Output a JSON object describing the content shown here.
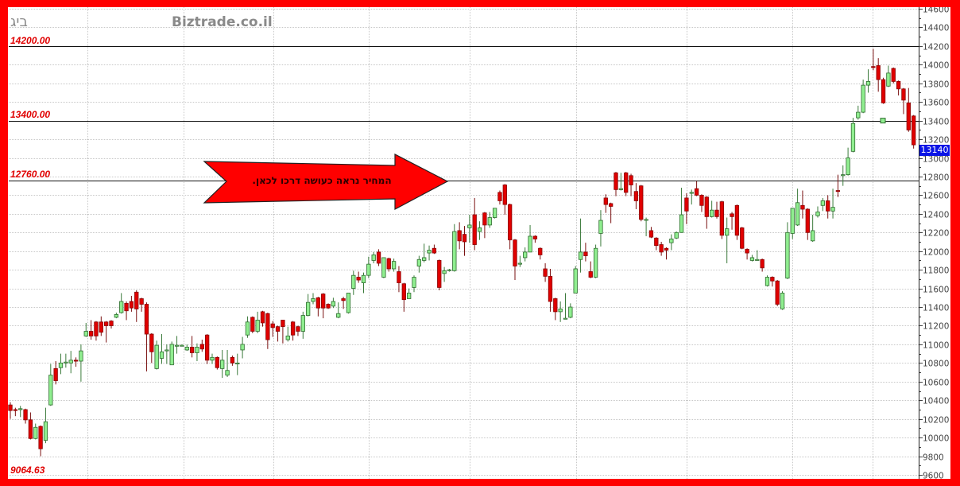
{
  "header": {
    "symbol_title": "ביג",
    "watermark": "Biztrade.co.il"
  },
  "annotations": {
    "levels": [
      {
        "value": 14200,
        "label": "14200.00"
      },
      {
        "value": 13400,
        "label": "13400.00"
      },
      {
        "value": 12760,
        "label": "12760.00"
      }
    ],
    "bottom_label": "9064.63",
    "arrow_text": "המחיר נראה  כעושה דרכו לכאן.",
    "last_price_badge": "13140",
    "colors": {
      "up": "#90ee90",
      "down": "#e00000",
      "level_label": "#e00000",
      "arrow": "#ff0000",
      "badge": "#0a14e6"
    }
  },
  "chart_data": {
    "type": "candlestick",
    "title": "",
    "xlabel": "",
    "ylabel": "",
    "ylim": [
      9600,
      14600
    ],
    "y_ticks": [
      9600,
      9800,
      10000,
      10200,
      10400,
      10600,
      10800,
      11000,
      11200,
      11400,
      11600,
      11800,
      12000,
      12200,
      12400,
      12600,
      12800,
      13000,
      13200,
      13400,
      13600,
      13800,
      14000,
      14200,
      14400,
      14600
    ],
    "y_axis_side": "right",
    "grid": true,
    "candle_fields": [
      "open",
      "high",
      "low",
      "close"
    ],
    "candles": [
      [
        10350,
        10380,
        10200,
        10290
      ],
      [
        10300,
        10320,
        10230,
        10290
      ],
      [
        10300,
        10340,
        10220,
        10310
      ],
      [
        10300,
        10310,
        10150,
        10190
      ],
      [
        10190,
        10270,
        9980,
        9990
      ],
      [
        9990,
        10150,
        9980,
        10110
      ],
      [
        10120,
        10130,
        9800,
        9880
      ],
      [
        9970,
        10320,
        9940,
        10170
      ],
      [
        10350,
        10790,
        10340,
        10670
      ],
      [
        10740,
        10820,
        10570,
        10610
      ],
      [
        10750,
        10900,
        10680,
        10800
      ],
      [
        10810,
        10900,
        10750,
        10810
      ],
      [
        10800,
        10930,
        10690,
        10830
      ],
      [
        10830,
        10860,
        10760,
        10820
      ],
      [
        10820,
        11000,
        10600,
        10930
      ],
      [
        11090,
        11230,
        11080,
        11140
      ],
      [
        11140,
        11260,
        11050,
        11090
      ],
      [
        11240,
        11250,
        11040,
        11090
      ],
      [
        11240,
        11300,
        11090,
        11130
      ],
      [
        11240,
        11250,
        11020,
        11200
      ],
      [
        11250,
        11260,
        11170,
        11200
      ],
      [
        11290,
        11340,
        11280,
        11320
      ],
      [
        11340,
        11550,
        11330,
        11460
      ],
      [
        11440,
        11460,
        11260,
        11360
      ],
      [
        11460,
        11520,
        11350,
        11390
      ],
      [
        11560,
        11580,
        11240,
        11380
      ],
      [
        11490,
        11500,
        11350,
        11430
      ],
      [
        11430,
        11450,
        10710,
        11110
      ],
      [
        11110,
        11120,
        10800,
        10920
      ],
      [
        10740,
        11040,
        10730,
        10990
      ],
      [
        10850,
        11110,
        10790,
        10920
      ],
      [
        10940,
        11000,
        10790,
        10940
      ],
      [
        10780,
        11030,
        10780,
        11000
      ],
      [
        10990,
        11090,
        10900,
        10990
      ],
      [
        10990,
        11000,
        10980,
        10990
      ],
      [
        10940,
        11000,
        10930,
        10970
      ],
      [
        10970,
        11090,
        10860,
        10910
      ],
      [
        10910,
        11010,
        10820,
        10970
      ],
      [
        11000,
        11050,
        10920,
        10950
      ],
      [
        11100,
        11110,
        10790,
        10830
      ],
      [
        10830,
        10900,
        10790,
        10860
      ],
      [
        10860,
        10870,
        10730,
        10750
      ],
      [
        10740,
        10940,
        10640,
        10830
      ],
      [
        10670,
        10940,
        10650,
        10720
      ],
      [
        10860,
        10880,
        10770,
        10800
      ],
      [
        10800,
        10900,
        10670,
        10800
      ],
      [
        10940,
        11080,
        10850,
        11000
      ],
      [
        11100,
        11300,
        11070,
        11240
      ],
      [
        11290,
        11300,
        11120,
        11140
      ],
      [
        11140,
        11350,
        11120,
        11260
      ],
      [
        11350,
        11360,
        11190,
        11230
      ],
      [
        11330,
        11340,
        10950,
        11050
      ],
      [
        11220,
        11250,
        11080,
        11180
      ],
      [
        11190,
        11200,
        11030,
        11140
      ],
      [
        11260,
        11260,
        11010,
        11190
      ],
      [
        11050,
        11190,
        11030,
        11090
      ],
      [
        11240,
        11250,
        11040,
        11100
      ],
      [
        11190,
        11200,
        11090,
        11140
      ],
      [
        11140,
        11350,
        11060,
        11310
      ],
      [
        11310,
        11540,
        11300,
        11450
      ],
      [
        11460,
        11550,
        11430,
        11490
      ],
      [
        11500,
        11510,
        11300,
        11390
      ],
      [
        11540,
        11550,
        11280,
        11390
      ],
      [
        11430,
        11440,
        11380,
        11390
      ],
      [
        11410,
        11500,
        11390,
        11460
      ],
      [
        11290,
        11450,
        11280,
        11330
      ],
      [
        11490,
        11510,
        11380,
        11470
      ],
      [
        11340,
        11550,
        11330,
        11550
      ],
      [
        11600,
        11790,
        11530,
        11740
      ],
      [
        11720,
        11780,
        11660,
        11690
      ],
      [
        11660,
        11770,
        11550,
        11740
      ],
      [
        11740,
        11940,
        11710,
        11860
      ],
      [
        11900,
        11990,
        11870,
        11960
      ],
      [
        11990,
        12020,
        11840,
        11870
      ],
      [
        11720,
        11930,
        11710,
        11930
      ],
      [
        11920,
        11930,
        11780,
        11810
      ],
      [
        11810,
        11920,
        11780,
        11890
      ],
      [
        11780,
        11840,
        11560,
        11660
      ],
      [
        11650,
        11660,
        11350,
        11480
      ],
      [
        11490,
        11600,
        11490,
        11550
      ],
      [
        11610,
        11740,
        11560,
        11720
      ],
      [
        11840,
        11950,
        11770,
        11910
      ],
      [
        11900,
        12080,
        11880,
        11930
      ],
      [
        11980,
        12060,
        11900,
        12010
      ],
      [
        12030,
        12070,
        11970,
        11980
      ],
      [
        11900,
        11910,
        11580,
        11610
      ],
      [
        11760,
        11830,
        11670,
        11790
      ],
      [
        11800,
        11810,
        11780,
        11800
      ],
      [
        11790,
        12290,
        11780,
        12210
      ],
      [
        12220,
        12310,
        12020,
        12110
      ],
      [
        12180,
        12270,
        11950,
        12100
      ],
      [
        12250,
        12390,
        12090,
        12280
      ],
      [
        12390,
        12570,
        12010,
        12070
      ],
      [
        12210,
        12320,
        12120,
        12250
      ],
      [
        12410,
        12420,
        12140,
        12280
      ],
      [
        12280,
        12420,
        12250,
        12360
      ],
      [
        12360,
        12460,
        12350,
        12460
      ],
      [
        12630,
        12650,
        12500,
        12540
      ],
      [
        12710,
        12720,
        12390,
        12500
      ],
      [
        12500,
        12510,
        12020,
        12120
      ],
      [
        12120,
        12130,
        11690,
        11840
      ],
      [
        11870,
        11950,
        11830,
        11870
      ],
      [
        11930,
        12040,
        11890,
        11990
      ],
      [
        11990,
        12280,
        11990,
        12160
      ],
      [
        12160,
        12170,
        12090,
        12130
      ],
      [
        12030,
        12040,
        11910,
        11960
      ],
      [
        11810,
        11870,
        11670,
        11730
      ],
      [
        11730,
        11810,
        11350,
        11460
      ],
      [
        11490,
        11500,
        11260,
        11350
      ],
      [
        11350,
        11460,
        11240,
        11380
      ],
      [
        11280,
        11550,
        11280,
        11280
      ],
      [
        11290,
        11440,
        11280,
        11400
      ],
      [
        11550,
        11840,
        11550,
        11810
      ],
      [
        11910,
        12350,
        11770,
        11990
      ],
      [
        11990,
        12090,
        11890,
        11950
      ],
      [
        11780,
        11890,
        11710,
        11720
      ],
      [
        11720,
        12070,
        11710,
        12030
      ],
      [
        12190,
        12440,
        12050,
        12330
      ],
      [
        12570,
        12610,
        12410,
        12500
      ],
      [
        12510,
        12520,
        12300,
        12480
      ],
      [
        12840,
        12850,
        12590,
        12660
      ],
      [
        12660,
        12840,
        12650,
        12670
      ],
      [
        12840,
        12850,
        12590,
        12630
      ],
      [
        12810,
        12830,
        12590,
        12710
      ],
      [
        12640,
        12730,
        12450,
        12540
      ],
      [
        12700,
        12710,
        12320,
        12340
      ],
      [
        12340,
        12360,
        12160,
        12340
      ],
      [
        12220,
        12260,
        12140,
        12150
      ],
      [
        12140,
        12150,
        12010,
        12060
      ],
      [
        12070,
        12100,
        11950,
        11990
      ],
      [
        12030,
        12040,
        11910,
        12010
      ],
      [
        12090,
        12180,
        12010,
        12130
      ],
      [
        12140,
        12210,
        12130,
        12200
      ],
      [
        12200,
        12680,
        12200,
        12390
      ],
      [
        12570,
        12620,
        12290,
        12430
      ],
      [
        12620,
        12660,
        12500,
        12630
      ],
      [
        12670,
        12750,
        12590,
        12600
      ],
      [
        12600,
        12610,
        12420,
        12490
      ],
      [
        12580,
        12590,
        12240,
        12370
      ],
      [
        12370,
        12540,
        12360,
        12440
      ],
      [
        12440,
        12530,
        12350,
        12370
      ],
      [
        12530,
        12540,
        12130,
        12170
      ],
      [
        12170,
        12360,
        11870,
        12240
      ],
      [
        12400,
        12420,
        12230,
        12370
      ],
      [
        12490,
        12500,
        12120,
        12170
      ],
      [
        12250,
        12260,
        12020,
        12030
      ],
      [
        12020,
        12030,
        11910,
        11980
      ],
      [
        11900,
        11960,
        11890,
        11930
      ],
      [
        11910,
        12010,
        11900,
        11910
      ],
      [
        11910,
        11920,
        11780,
        11820
      ],
      [
        11630,
        11740,
        11620,
        11720
      ],
      [
        11720,
        11730,
        11620,
        11680
      ],
      [
        11680,
        11690,
        11410,
        11430
      ],
      [
        11380,
        11570,
        11370,
        11550
      ],
      [
        11710,
        12310,
        11700,
        12200
      ],
      [
        12190,
        12460,
        12130,
        12460
      ],
      [
        12280,
        12670,
        12270,
        12520
      ],
      [
        12490,
        12650,
        12350,
        12450
      ],
      [
        12450,
        12460,
        12120,
        12200
      ],
      [
        12110,
        12390,
        12100,
        12220
      ],
      [
        12380,
        12480,
        12360,
        12420
      ],
      [
        12490,
        12570,
        12430,
        12540
      ],
      [
        12540,
        12600,
        12350,
        12430
      ],
      [
        12430,
        12670,
        12350,
        12470
      ],
      [
        12650,
        12820,
        12580,
        12640
      ],
      [
        12810,
        12920,
        12700,
        12820
      ],
      [
        12820,
        13110,
        12810,
        13000
      ],
      [
        13070,
        13430,
        13060,
        13370
      ],
      [
        13430,
        13560,
        13410,
        13490
      ],
      [
        13490,
        13840,
        13480,
        13780
      ],
      [
        13780,
        13950,
        13700,
        13820
      ],
      [
        13980,
        14170,
        13940,
        13970
      ],
      [
        13990,
        14070,
        13710,
        13840
      ],
      [
        13840,
        13860,
        13580,
        13590
      ],
      [
        13770,
        13990,
        13760,
        13910
      ],
      [
        13960,
        13970,
        13800,
        13820
      ],
      [
        13820,
        13830,
        13670,
        13740
      ],
      [
        13740,
        13750,
        13470,
        13620
      ],
      [
        13590,
        13750,
        13280,
        13300
      ],
      [
        13450,
        13460,
        13100,
        13140
      ]
    ],
    "last_price": 13140
  }
}
